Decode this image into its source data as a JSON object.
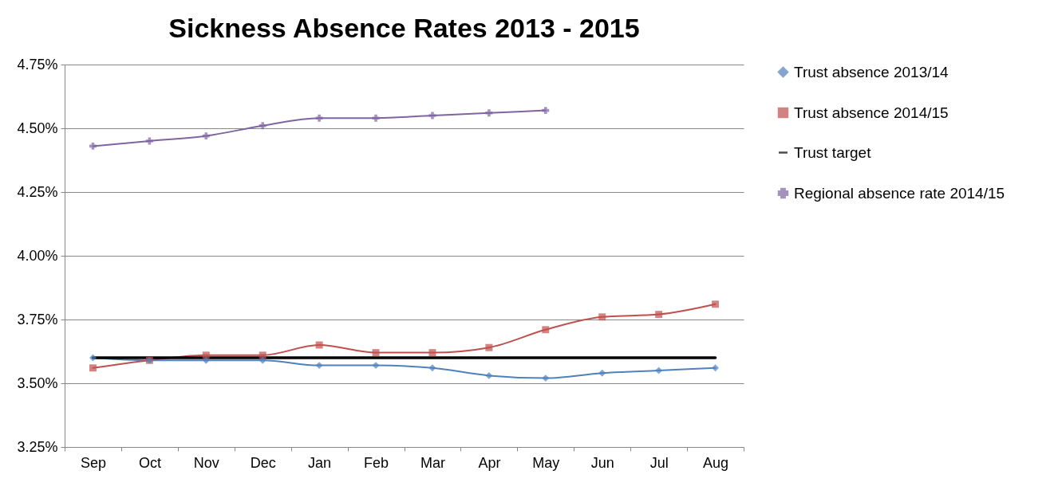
{
  "chart_data": {
    "type": "line",
    "title": "Sickness Absence Rates 2013 - 2015",
    "categories": [
      "Sep",
      "Oct",
      "Nov",
      "Dec",
      "Jan",
      "Feb",
      "Mar",
      "Apr",
      "May",
      "Jun",
      "Jul",
      "Aug"
    ],
    "series": [
      {
        "name": "Trust absence 2013/14",
        "color": "#4f81bd",
        "marker": "diamond",
        "values": [
          3.6,
          3.59,
          3.59,
          3.59,
          3.57,
          3.57,
          3.56,
          3.53,
          3.52,
          3.54,
          3.55,
          3.56
        ]
      },
      {
        "name": "Trust absence 2014/15",
        "color": "#c0504d",
        "marker": "square",
        "values": [
          3.56,
          3.59,
          3.61,
          3.61,
          3.65,
          3.62,
          3.62,
          3.64,
          3.71,
          3.76,
          3.77,
          3.81
        ]
      },
      {
        "name": "Trust target",
        "color": "#000000",
        "marker": "none",
        "values": [
          3.6,
          3.6,
          3.6,
          3.6,
          3.6,
          3.6,
          3.6,
          3.6,
          3.6,
          3.6,
          3.6,
          3.6
        ]
      },
      {
        "name": "Regional absence rate 2014/15",
        "color": "#8064a2",
        "marker": "cross",
        "values": [
          4.43,
          4.45,
          4.47,
          4.51,
          4.54,
          4.54,
          4.55,
          4.56,
          4.57,
          null,
          null,
          null
        ]
      }
    ],
    "ylim": [
      3.25,
      4.75
    ],
    "yticks": [
      {
        "value": 3.25,
        "label": "3.25%"
      },
      {
        "value": 3.5,
        "label": "3.50%"
      },
      {
        "value": 3.75,
        "label": "3.75%"
      },
      {
        "value": 4.0,
        "label": "4.00%"
      },
      {
        "value": 4.25,
        "label": "4.25%"
      },
      {
        "value": 4.5,
        "label": "4.50%"
      },
      {
        "value": 4.75,
        "label": "4.75%"
      }
    ],
    "grid": "y",
    "legend": "right"
  }
}
